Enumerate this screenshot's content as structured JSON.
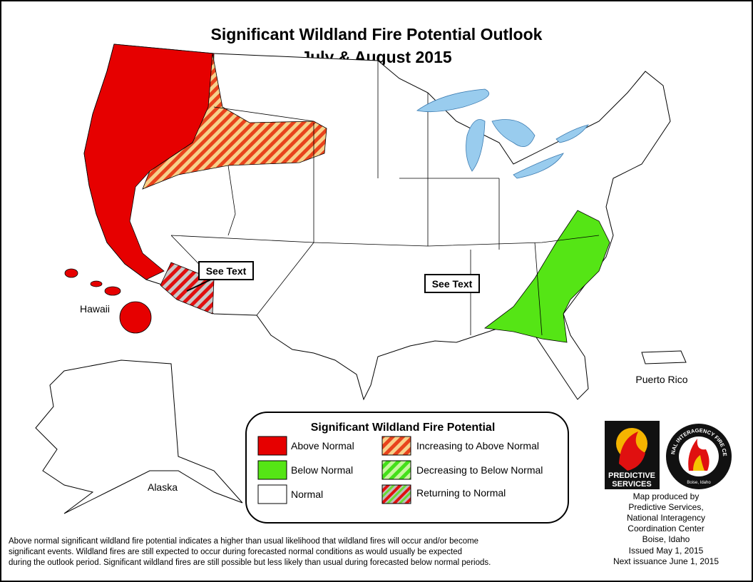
{
  "title": {
    "line1": "Significant Wildland Fire Potential Outlook",
    "line2": "July & August 2015"
  },
  "map_labels": {
    "hawaii": "Hawaii",
    "alaska": "Alaska",
    "puerto_rico": "Puerto Rico"
  },
  "callouts": [
    "See Text",
    "See Text"
  ],
  "legend": {
    "title": "Significant Wildland Fire Potential",
    "items": [
      "Above Normal",
      "Below Normal",
      "Normal",
      "Increasing to Above Normal",
      "Decreasing to Below Normal",
      "Returning to Normal"
    ]
  },
  "logos": {
    "predictive_services": [
      "PREDICTIVE",
      "SERVICES"
    ],
    "nifc": "NATIONAL INTERAGENCY FIRE CENTER",
    "nifc_location": "Boise, Idaho"
  },
  "credits": [
    "Map produced by",
    "Predictive Services,",
    "National Interagency",
    "Coordination Center",
    "Boise, Idaho",
    "Issued May 1, 2015",
    "Next issuance June 1, 2015"
  ],
  "footnote": [
    "Above normal significant wildland fire potential indicates a higher than usual likelihood that wildland fires will occur and/or become",
    "significant events.  Wildland fires are still expected to occur during forecasted normal conditions as would usually be expected",
    "during the outlook period.  Significant wildland fires are still possible but less likely than usual during forecasted below normal periods."
  ]
}
